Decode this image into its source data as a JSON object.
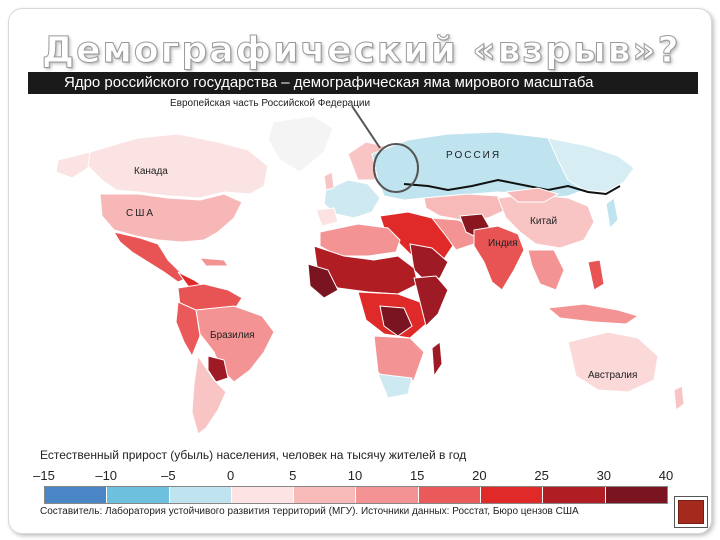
{
  "slide": {
    "title": "Демографический «взрыв»?",
    "subtitle": "Ядро российского государства – демографическая яма мирового масштаба"
  },
  "map": {
    "callout_label": "Европейская часть Российской Федерации",
    "region_labels": {
      "canada": "Канада",
      "usa": "США",
      "russia": "РОССИЯ",
      "china": "Китай",
      "india": "Индия",
      "brazil": "Бразилия",
      "australia": "Австралия"
    }
  },
  "legend": {
    "title": "Естественный прирост (убыль) населения, человек на тысячу жителей в год",
    "ticks": [
      "–15",
      "–10",
      "–5",
      "0",
      "5",
      "10",
      "15",
      "20",
      "25",
      "30",
      "40"
    ],
    "colors": [
      "#4a86c5",
      "#6ec1de",
      "#bfe3ef",
      "#fde3e3",
      "#f8b9b9",
      "#f39393",
      "#eb5a5a",
      "#e02a2a",
      "#b01e24",
      "#7a1420"
    ]
  },
  "source": "Составитель: Лаборатория устойчивого развития территорий (МГУ). Источники данных: Росстат, Бюро цензов США"
}
